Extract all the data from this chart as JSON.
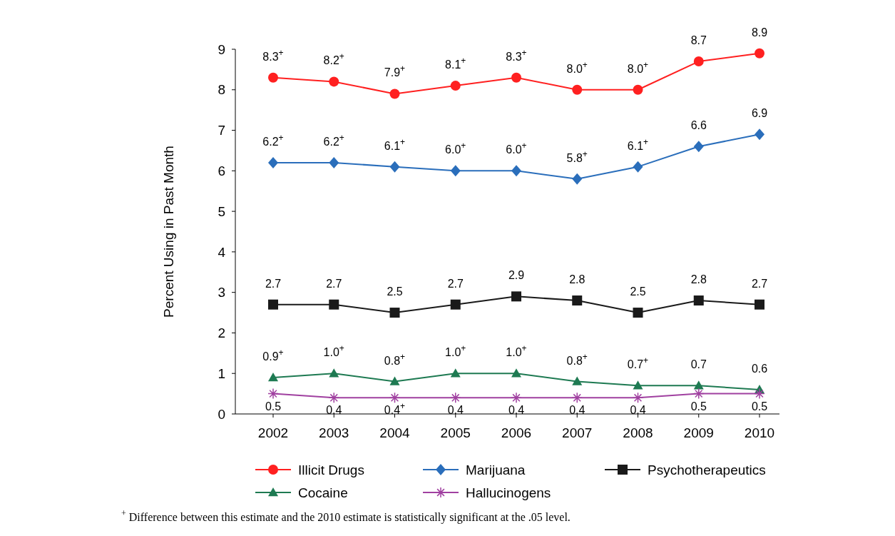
{
  "chart_data": {
    "type": "line",
    "ylabel": "Percent Using in Past Month",
    "categories": [
      "2002",
      "2003",
      "2004",
      "2005",
      "2006",
      "2007",
      "2008",
      "2009",
      "2010"
    ],
    "ylim": [
      0,
      9
    ],
    "yticks": [
      0,
      1,
      2,
      3,
      4,
      5,
      6,
      7,
      8,
      9
    ],
    "grid": false,
    "legend": "bottom",
    "series": [
      {
        "name": "Illicit Drugs",
        "color": "#ff2020",
        "marker": "circle",
        "values": [
          8.3,
          8.2,
          7.9,
          8.1,
          8.3,
          8.0,
          8.0,
          8.7,
          8.9
        ],
        "value_labels": [
          "8.3$^{+}$",
          "8.2$^{+}$",
          "7.9$^{+}$",
          "8.1$^{+}$",
          "8.3$^{+}$",
          "8.0$^{+}$",
          "8.0$^{+}$",
          "8.7",
          "8.9"
        ]
      },
      {
        "name": "Marijuana",
        "color": "#2a6ebb",
        "marker": "diamond",
        "values": [
          6.2,
          6.2,
          6.1,
          6.0,
          6.0,
          5.8,
          6.1,
          6.6,
          6.9
        ],
        "value_labels": [
          "6.2$^{+}$",
          "6.2$^{+}$",
          "6.1$^{+}$",
          "6.0$^{+}$",
          "6.0$^{+}$",
          "5.8$^{+}$",
          "6.1$^{+}$",
          "6.6",
          "6.9"
        ]
      },
      {
        "name": "Psychotherapeutics",
        "color": "#1a1a1a",
        "marker": "square",
        "values": [
          2.7,
          2.7,
          2.5,
          2.7,
          2.9,
          2.8,
          2.5,
          2.8,
          2.7
        ],
        "value_labels": [
          "2.7",
          "2.7",
          "2.5",
          "2.7",
          "2.9",
          "2.8",
          "2.5",
          "2.8",
          "2.7"
        ]
      },
      {
        "name": "Cocaine",
        "color": "#1e7a52",
        "marker": "triangle",
        "values": [
          0.9,
          1.0,
          0.8,
          1.0,
          1.0,
          0.8,
          0.7,
          0.7,
          0.6
        ],
        "value_labels": [
          "0.9$^{+}$",
          "1.0$^{+}$",
          "0.8$^{+}$",
          "1.0$^{+}$",
          "1.0$^{+}$",
          "0.8$^{+}$",
          "0.7$^{+}$",
          "0.7",
          "0.6"
        ]
      },
      {
        "name": "Hallucinogens",
        "color": "#a040a0",
        "marker": "cross",
        "values": [
          0.5,
          0.4,
          0.4,
          0.4,
          0.4,
          0.4,
          0.4,
          0.5,
          0.5
        ],
        "value_labels": [
          "0.5",
          "0.4",
          "0.4$^{+}$",
          "0.4",
          "0.4",
          "0.4",
          "0.4",
          "0.5",
          "0.5"
        ]
      }
    ],
    "annotations": [
      "$^{+}$ Difference between this estimate and the 2010 estimate is statistically significant at the .05 level."
    ]
  }
}
